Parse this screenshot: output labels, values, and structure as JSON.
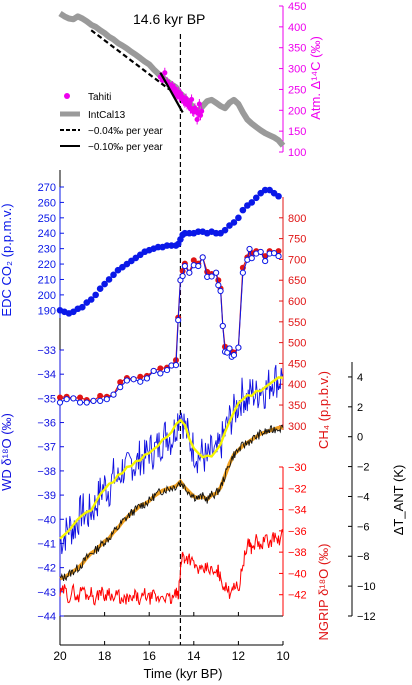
{
  "colors": {
    "intcal": "#9a9a9a",
    "tahiti": "#ee00ee",
    "co2": "#0a18e8",
    "ch4": "#e01414",
    "wd": "#1010e0",
    "wd_smooth": "#f4f400",
    "ngrip": "#ff0000",
    "tant": "#111111",
    "tant_smooth": "#f0a020",
    "axis": "#000000"
  },
  "labels": {
    "event": "14.6 kyr BP",
    "xlabel": "Time (kyr BP)",
    "c14_axis": "Atm. Δ¹⁴C (‰)",
    "co2_axis": "EDC CO₂ (p.p.m.v.)",
    "ch4_axis": "CH₄ (p.p.b.v.)",
    "wd_axis": "WD δ¹⁸O (‰)",
    "tant_axis": "ΔT_ANT (K)",
    "ngrip_axis": "NGRIP δ¹⁸O (‰)",
    "legend_tahiti": "Tahiti",
    "legend_intcal": "IntCal13",
    "legend_rate1": "−0.04‰ per year",
    "legend_rate2": "−0.10‰ per year"
  },
  "chart_data": {
    "type": "line",
    "shared_x": {
      "label": "Time (kyr BP)",
      "range": [
        20,
        10
      ],
      "ticks": [
        20,
        18,
        16,
        14,
        12,
        10
      ],
      "event_line_x": 14.6
    },
    "panels": [
      {
        "id": "c14",
        "axis_label": "Atm. Δ14C (‰)",
        "axis_side": "right",
        "ylim": [
          100,
          450
        ],
        "yticks": [
          100,
          150,
          200,
          250,
          300,
          350,
          400,
          450
        ],
        "series": [
          {
            "name": "IntCal13",
            "style": "thick-line",
            "x": [
              20.0,
              19.8,
              19.6,
              19.4,
              19.2,
              19.0,
              18.8,
              18.6,
              18.4,
              18.2,
              18.0,
              17.8,
              17.6,
              17.4,
              17.2,
              17.0,
              16.8,
              16.6,
              16.4,
              16.2,
              16.0,
              15.8,
              15.6,
              15.4,
              15.2,
              15.0,
              14.8,
              14.6,
              14.4,
              14.2,
              14.0,
              13.8,
              13.6,
              13.4,
              13.2,
              13.0,
              12.8,
              12.6,
              12.4,
              12.2,
              12.0,
              11.8,
              11.6,
              11.4,
              11.2,
              11.0,
              10.8,
              10.6,
              10.4,
              10.2,
              10.0
            ],
            "values": [
              432,
              425,
              420,
              418,
              425,
              420,
              413,
              405,
              400,
              392,
              385,
              376,
              370,
              361,
              355,
              348,
              340,
              333,
              325,
              317,
              310,
              298,
              288,
              278,
              270,
              262,
              255,
              240,
              230,
              218,
              205,
              198,
              210,
              222,
              225,
              218,
              210,
              205,
              218,
              225,
              215,
              195,
              178,
              168,
              160,
              152,
              145,
              140,
              135,
              128,
              115
            ]
          },
          {
            "name": "Tahiti",
            "style": "markers",
            "x": [
              15.5,
              15.4,
              15.3,
              15.2,
              15.1,
              15.0,
              14.95,
              14.9,
              14.85,
              14.8,
              14.75,
              14.7,
              14.65,
              14.6,
              14.55,
              14.5,
              14.45,
              14.4,
              14.35,
              14.3,
              14.25,
              14.2,
              14.15,
              14.1,
              14.05,
              14.0,
              13.95,
              13.9,
              13.85,
              13.8,
              13.75,
              13.7,
              13.65
            ],
            "values": [
              280,
              272,
              290,
              268,
              262,
              255,
              258,
              246,
              252,
              240,
              236,
              244,
              232,
              240,
              228,
              232,
              222,
              218,
              228,
              214,
              218,
              210,
              204,
              226,
              198,
              196,
              205,
              200,
              178,
              194,
              215,
              188,
              198
            ]
          },
          {
            "name": "−0.04‰ per year",
            "style": "dashed-line",
            "x": [
              18.6,
              15.1
            ],
            "values": [
              392,
              250
            ]
          },
          {
            "name": "−0.10‰ per year",
            "style": "solid-line",
            "x": [
              15.5,
              14.5
            ],
            "values": [
              290,
              195
            ]
          }
        ]
      },
      {
        "id": "co2",
        "axis_label": "EDC CO2 (p.p.m.v.)",
        "axis_side": "left",
        "ylim": [
          185,
          270
        ],
        "yticks": [
          190,
          200,
          210,
          220,
          230,
          240,
          250,
          260,
          270
        ],
        "series": [
          {
            "name": "",
            "style": "markers",
            "x": [
              20.0,
              19.8,
              19.6,
              19.4,
              19.2,
              19.0,
              18.8,
              18.6,
              18.4,
              18.2,
              18.0,
              17.8,
              17.6,
              17.4,
              17.2,
              17.0,
              16.8,
              16.6,
              16.4,
              16.2,
              16.0,
              15.8,
              15.6,
              15.4,
              15.2,
              15.0,
              14.8,
              14.7,
              14.6,
              14.5,
              14.4,
              14.2,
              14.0,
              13.8,
              13.6,
              13.4,
              13.2,
              13.0,
              12.8,
              12.6,
              12.4,
              12.2,
              12.0,
              11.8,
              11.6,
              11.4,
              11.2,
              11.0,
              10.8,
              10.6,
              10.4,
              10.2
            ],
            "values": [
              190,
              189,
              188,
              189,
              191,
              192,
              195,
              197,
              200,
              204,
              207,
              210,
              213,
              216,
              218,
              220,
              222,
              224,
              226,
              228,
              229,
              230,
              231,
              231,
              232,
              232,
              232,
              233,
              236,
              239,
              240,
              240,
              240,
              241,
              241,
              240,
              241,
              240,
              240,
              242,
              245,
              247,
              250,
              255,
              258,
              260,
              263,
              266,
              268,
              268,
              266,
              264
            ]
          }
        ]
      },
      {
        "id": "ch4",
        "axis_label": "CH4 (p.p.b.v.)",
        "axis_side": "right",
        "ylim": [
          290,
          850
        ],
        "yticks": [
          300,
          350,
          400,
          450,
          500,
          550,
          600,
          650,
          700,
          750,
          800
        ],
        "series": [
          {
            "name": "",
            "style": "line-markers",
            "x": [
              20.0,
              19.7,
              19.4,
              19.1,
              18.8,
              18.5,
              18.2,
              17.9,
              17.6,
              17.3,
              17.0,
              16.7,
              16.4,
              16.1,
              15.8,
              15.5,
              15.2,
              15.0,
              14.8,
              14.7,
              14.6,
              14.5,
              14.4,
              14.2,
              14.0,
              13.8,
              13.6,
              13.4,
              13.2,
              13.0,
              12.9,
              12.8,
              12.7,
              12.6,
              12.5,
              12.4,
              12.3,
              12.2,
              12.0,
              11.8,
              11.6,
              11.5,
              11.4,
              11.2,
              11.0,
              10.8,
              10.6,
              10.4,
              10.2
            ],
            "values": [
              368,
              370,
              366,
              368,
              362,
              360,
              372,
              370,
              375,
              405,
              415,
              412,
              418,
              420,
              432,
              438,
              440,
              445,
              458,
              560,
              650,
              672,
              690,
              668,
              698,
              690,
              705,
              670,
              665,
              668,
              650,
              630,
              540,
              490,
              482,
              486,
              478,
              476,
              488,
              680,
              705,
              725,
              715,
              720,
              718,
              708,
              720,
              715,
              720
            ]
          }
        ]
      },
      {
        "id": "wd",
        "axis_label": "WD δ18O (‰)",
        "axis_side": "left",
        "ylim": [
          -44,
          -33
        ],
        "yticks": [
          -44,
          -43,
          -42,
          -41,
          -40,
          -39,
          -38,
          -37,
          -36,
          -35,
          -34,
          -33
        ],
        "series": [
          {
            "name": "",
            "style": "line",
            "x": [
              20.0,
              19.8,
              19.6,
              19.4,
              19.2,
              19.0,
              18.8,
              18.6,
              18.4,
              18.2,
              18.0,
              17.8,
              17.6,
              17.4,
              17.2,
              17.0,
              16.8,
              16.6,
              16.4,
              16.2,
              16.0,
              15.8,
              15.6,
              15.4,
              15.2,
              15.0,
              14.8,
              14.6,
              14.4,
              14.2,
              14.0,
              13.8,
              13.6,
              13.4,
              13.2,
              13.0,
              12.8,
              12.6,
              12.4,
              12.2,
              12.0,
              11.8,
              11.6,
              11.4,
              11.2,
              11.0,
              10.8,
              10.6,
              10.4,
              10.2,
              10.0
            ],
            "values": [
              -40.9,
              -40.7,
              -40.3,
              -40.4,
              -40.0,
              -39.6,
              -39.9,
              -39.6,
              -39.4,
              -38.9,
              -38.6,
              -38.8,
              -38.2,
              -38.4,
              -37.9,
              -38.0,
              -37.6,
              -37.8,
              -37.4,
              -37.5,
              -37.1,
              -37.2,
              -37.0,
              -36.7,
              -36.4,
              -36.7,
              -36.1,
              -35.4,
              -36.2,
              -36.7,
              -37.1,
              -37.4,
              -37.3,
              -37.6,
              -37.2,
              -37.4,
              -36.9,
              -36.4,
              -35.9,
              -35.6,
              -35.2,
              -34.8,
              -35.1,
              -34.7,
              -34.9,
              -34.5,
              -34.7,
              -34.4,
              -34.1,
              -34.3,
              -34.0
            ]
          }
        ]
      },
      {
        "id": "tant",
        "axis_label": "ΔT_ANT (K)",
        "axis_side": "right",
        "ylim": [
          -12,
          5
        ],
        "yticks": [
          -12,
          -10,
          -8,
          -6,
          -4,
          -2,
          0,
          2,
          4
        ],
        "series": [
          {
            "name": "",
            "style": "line",
            "x": [
              20.0,
              19.8,
              19.6,
              19.4,
              19.2,
              19.0,
              18.8,
              18.6,
              18.4,
              18.2,
              18.0,
              17.8,
              17.6,
              17.4,
              17.2,
              17.0,
              16.8,
              16.6,
              16.4,
              16.2,
              16.0,
              15.8,
              15.6,
              15.4,
              15.2,
              15.0,
              14.8,
              14.6,
              14.4,
              14.2,
              14.0,
              13.8,
              13.6,
              13.4,
              13.2,
              13.0,
              12.8,
              12.6,
              12.4,
              12.2,
              12.0,
              11.8,
              11.6,
              11.4,
              11.2,
              11.0,
              10.8,
              10.6,
              10.4,
              10.2,
              10.0
            ],
            "values": [
              -9.5,
              -9.4,
              -9.2,
              -9.0,
              -8.8,
              -8.5,
              -8.1,
              -7.8,
              -7.6,
              -7.3,
              -7.0,
              -6.8,
              -6.4,
              -6.1,
              -5.7,
              -5.4,
              -5.1,
              -4.9,
              -4.6,
              -4.5,
              -4.3,
              -4.0,
              -3.8,
              -3.6,
              -3.5,
              -3.4,
              -3.3,
              -3.0,
              -3.4,
              -3.7,
              -4.0,
              -4.1,
              -4.0,
              -4.2,
              -3.9,
              -3.8,
              -3.4,
              -2.6,
              -1.8,
              -1.2,
              -0.9,
              -0.6,
              -0.4,
              -0.2,
              0.0,
              0.2,
              0.3,
              0.4,
              0.5,
              0.6,
              0.6
            ]
          }
        ]
      },
      {
        "id": "ngrip",
        "axis_label": "NGRIP δ18O (‰)",
        "axis_side": "right",
        "ylim": [
          -44,
          -30
        ],
        "yticks": [
          -42,
          -40,
          -38,
          -36,
          -34,
          -32,
          -30
        ],
        "series": [
          {
            "name": "",
            "style": "line",
            "x": [
              20.0,
              19.8,
              19.6,
              19.4,
              19.2,
              19.0,
              18.8,
              18.6,
              18.4,
              18.2,
              18.0,
              17.8,
              17.6,
              17.4,
              17.2,
              17.0,
              16.8,
              16.6,
              16.4,
              16.2,
              16.0,
              15.8,
              15.6,
              15.4,
              15.2,
              15.0,
              14.8,
              14.7,
              14.6,
              14.55,
              14.5,
              14.4,
              14.2,
              14.0,
              13.8,
              13.6,
              13.4,
              13.2,
              13.0,
              12.9,
              12.8,
              12.6,
              12.4,
              12.2,
              12.0,
              11.8,
              11.6,
              11.5,
              11.4,
              11.2,
              11.0,
              10.8,
              10.6,
              10.4,
              10.2,
              10.0
            ],
            "values": [
              -42.0,
              -41.5,
              -42.3,
              -41.6,
              -42.4,
              -41.3,
              -42.1,
              -41.8,
              -42.6,
              -41.5,
              -42.2,
              -41.6,
              -42.5,
              -41.9,
              -42.8,
              -42.3,
              -42.6,
              -42.0,
              -42.7,
              -41.9,
              -42.4,
              -42.1,
              -42.5,
              -42.0,
              -42.3,
              -42.5,
              -41.8,
              -42.3,
              -39.8,
              -38.6,
              -38.2,
              -38.6,
              -38.5,
              -39.2,
              -39.6,
              -39.9,
              -39.4,
              -39.8,
              -40.1,
              -39.7,
              -40.5,
              -41.3,
              -41.8,
              -40.9,
              -41.6,
              -39.0,
              -37.5,
              -37.0,
              -37.8,
              -36.8,
              -37.6,
              -36.7,
              -37.2,
              -36.5,
              -37.0,
              -36.2
            ]
          }
        ]
      }
    ]
  }
}
